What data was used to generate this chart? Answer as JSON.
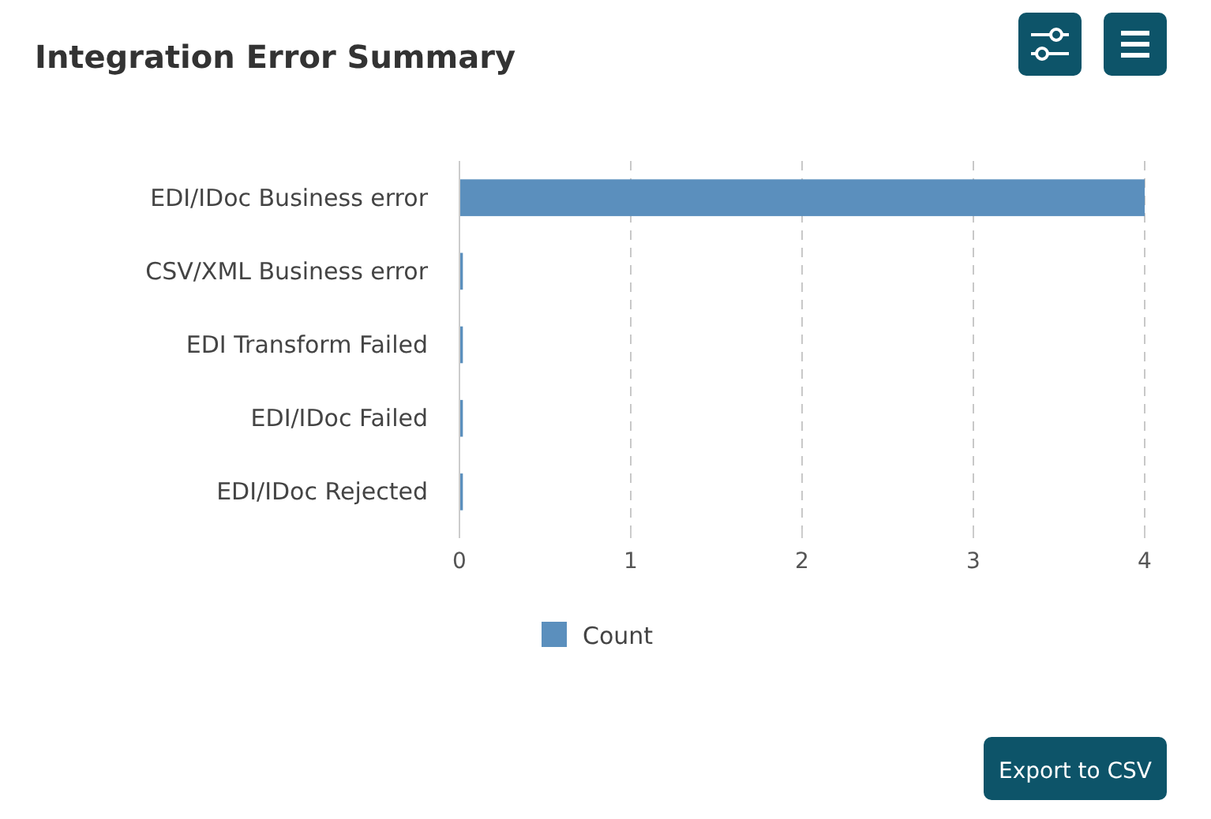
{
  "chart_data": {
    "type": "bar",
    "orientation": "horizontal",
    "title": "Integration Error Summary",
    "categories": [
      "EDI/IDoc Business error",
      "CSV/XML Business error",
      "EDI Transform Failed",
      "EDI/IDoc Failed",
      "EDI/IDoc Rejected"
    ],
    "series": [
      {
        "name": "Count",
        "color": "#5b8fbd",
        "values": [
          4,
          0.02,
          0.02,
          0.02,
          0.02
        ]
      }
    ],
    "xlim": [
      0,
      4
    ],
    "xticks": [
      0,
      1,
      2,
      3,
      4
    ],
    "grid": "x",
    "legend": "bottom",
    "annotations": [
      "Export to CSV"
    ]
  }
}
